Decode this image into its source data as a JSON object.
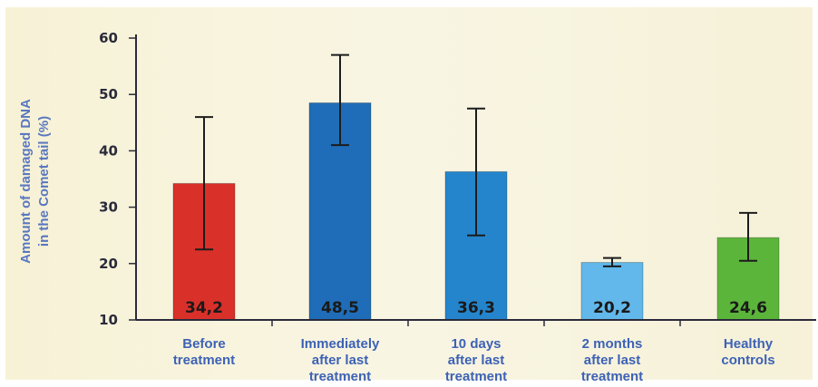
{
  "chart_data": {
    "type": "bar",
    "title": "",
    "xlabel": "",
    "ylabel": [
      "Amount of damaged DNA",
      "in the Comet tail (%)"
    ],
    "ylim": [
      10,
      60
    ],
    "yticks": [
      10,
      20,
      30,
      40,
      50,
      60
    ],
    "grid": false,
    "value_labels": [
      "34,2",
      "48,5",
      "36,3",
      "20,2",
      "24,6"
    ],
    "categories": [
      [
        "Before",
        "treatment"
      ],
      [
        "Immediately",
        "after last",
        "treatment"
      ],
      [
        "10 days",
        "after last",
        "treatment"
      ],
      [
        "2 months",
        "after last",
        "treatment"
      ],
      [
        "Healthy",
        "controls"
      ]
    ],
    "values": [
      34.2,
      48.5,
      36.3,
      20.2,
      24.6
    ],
    "error_low": [
      22.5,
      41,
      25,
      19.5,
      20.5
    ],
    "error_high": [
      46,
      57,
      47.5,
      21,
      29
    ],
    "bar_colors": [
      "#d9302a",
      "#1f6db8",
      "#2485cc",
      "#62b8ea",
      "#5bb53a"
    ],
    "background_color": "#f7f3dc",
    "axis_color": "#2a2a3a",
    "label_color": "#3d62b5"
  }
}
